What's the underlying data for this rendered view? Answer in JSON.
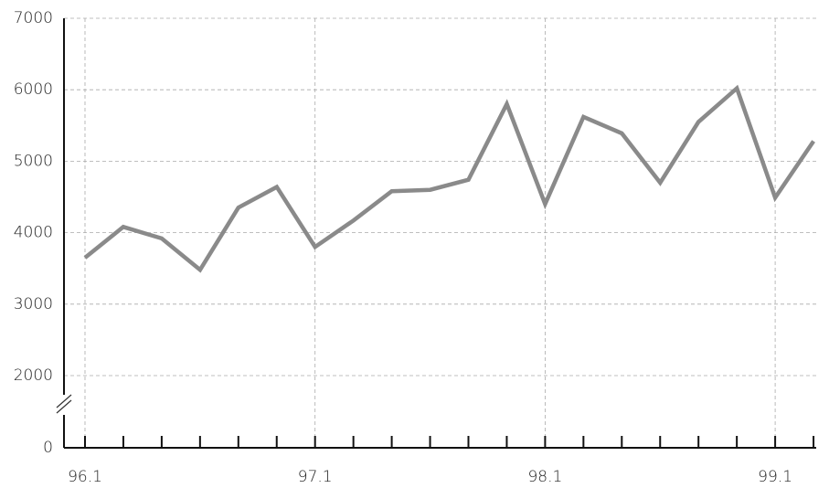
{
  "chart_data": {
    "type": "line",
    "categories": [
      "96.1",
      null,
      null,
      null,
      null,
      null,
      "97.1",
      null,
      null,
      null,
      null,
      null,
      "98.1",
      null,
      null,
      null,
      null,
      null,
      "99.1",
      null
    ],
    "values": [
      3650,
      4080,
      3920,
      3480,
      4350,
      4640,
      3800,
      4170,
      4580,
      4600,
      4740,
      5800,
      4400,
      5620,
      5390,
      4700,
      5550,
      6020,
      4490,
      5280
    ],
    "color": "#8a8a8a",
    "ylim": [
      0,
      7000
    ],
    "y_break": [
      0,
      2000
    ],
    "yticks": [
      0,
      2000,
      3000,
      4000,
      5000,
      6000,
      7000
    ],
    "grid": true
  }
}
